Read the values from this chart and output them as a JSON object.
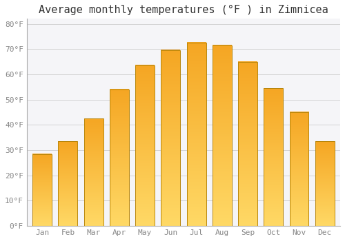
{
  "title": "Average monthly temperatures (°F ) in Zimnicea",
  "months": [
    "Jan",
    "Feb",
    "Mar",
    "Apr",
    "May",
    "Jun",
    "Jul",
    "Aug",
    "Sep",
    "Oct",
    "Nov",
    "Dec"
  ],
  "values": [
    28.5,
    33.5,
    42.5,
    54,
    63.5,
    69.5,
    72.5,
    71.5,
    65,
    54.5,
    45,
    33.5
  ],
  "bar_color_bottom": "#F5A623",
  "bar_color_top": "#FFD966",
  "bar_edge_color": "#B8860B",
  "background_color": "#FFFFFF",
  "plot_bg_color": "#F5F5F8",
  "grid_color": "#CCCCCC",
  "title_fontsize": 11,
  "tick_label_color": "#888888",
  "ylim": [
    0,
    82
  ],
  "yticks": [
    0,
    10,
    20,
    30,
    40,
    50,
    60,
    70,
    80
  ],
  "ytick_labels": [
    "0°F",
    "10°F",
    "20°F",
    "30°F",
    "40°F",
    "50°F",
    "60°F",
    "70°F",
    "80°F"
  ],
  "bar_width": 0.75
}
